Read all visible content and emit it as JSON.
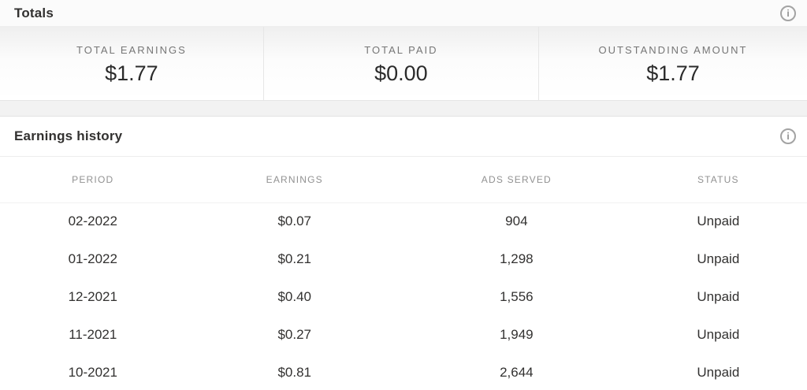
{
  "totals": {
    "title": "Totals",
    "cards": [
      {
        "label": "TOTAL EARNINGS",
        "value": "$1.77"
      },
      {
        "label": "TOTAL PAID",
        "value": "$0.00"
      },
      {
        "label": "OUTSTANDING AMOUNT",
        "value": "$1.77"
      }
    ]
  },
  "earnings_history": {
    "title": "Earnings history",
    "columns": [
      "PERIOD",
      "EARNINGS",
      "ADS SERVED",
      "STATUS"
    ],
    "rows": [
      {
        "period": "02-2022",
        "earnings": "$0.07",
        "ads_served": "904",
        "status": "Unpaid"
      },
      {
        "period": "01-2022",
        "earnings": "$0.21",
        "ads_served": "1,298",
        "status": "Unpaid"
      },
      {
        "period": "12-2021",
        "earnings": "$0.40",
        "ads_served": "1,556",
        "status": "Unpaid"
      },
      {
        "period": "11-2021",
        "earnings": "$0.27",
        "ads_served": "1,949",
        "status": "Unpaid"
      },
      {
        "period": "10-2021",
        "earnings": "$0.81",
        "ads_served": "2,644",
        "status": "Unpaid"
      }
    ]
  },
  "icons": {
    "info_glyph": "i"
  },
  "colors": {
    "text_primary": "#323130",
    "text_secondary": "#767676",
    "table_header_text": "#919191",
    "divider": "#e6e6e6",
    "section_gap_bg": "#f2f2f2",
    "card_gradient_top": "#efefef"
  }
}
